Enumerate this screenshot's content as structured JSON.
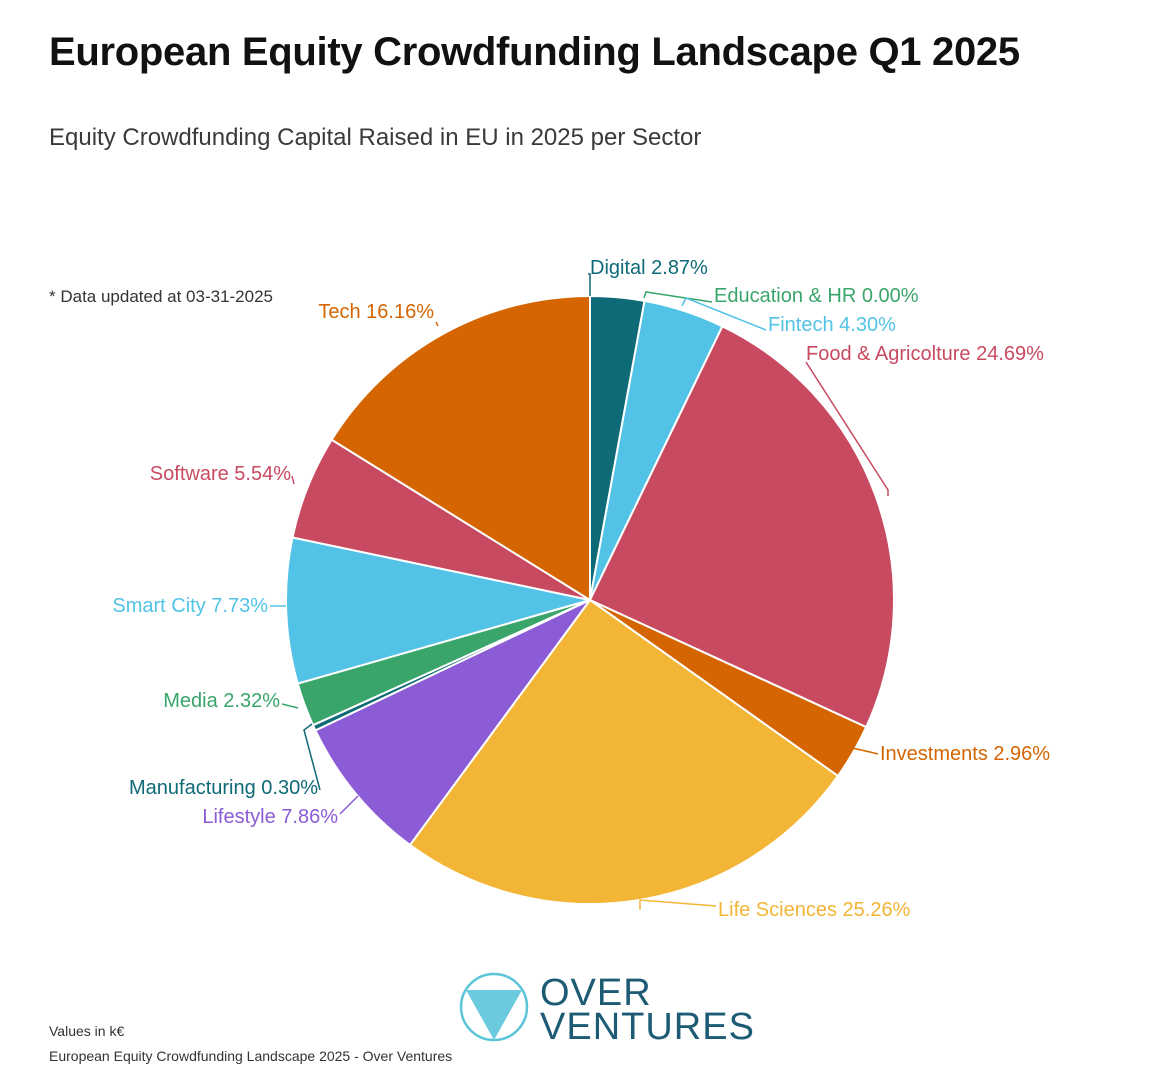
{
  "header": {
    "title": "European Equity Crowdfunding Landscape Q1 2025",
    "subtitle": "Equity Crowdfunding Capital Raised in EU in 2025 per Sector"
  },
  "note": "* Data updated at 03-31-2025",
  "chart_data": {
    "type": "pie",
    "title": "Equity Crowdfunding Capital Raised in EU in 2025 per Sector",
    "unit": "%",
    "slices": [
      {
        "name": "Digital",
        "value": 2.87,
        "label": "Digital 2.87%",
        "color": "#0f6a78"
      },
      {
        "name": "Education & HR",
        "value": 0.0,
        "label": "Education & HR 0.00%",
        "color": "#3aa56b"
      },
      {
        "name": "Fintech",
        "value": 4.3,
        "label": "Fintech 4.30%",
        "color": "#52c3e6"
      },
      {
        "name": "Food & Agricolture",
        "value": 24.69,
        "label": "Food & Agricolture 24.69%",
        "color": "#c84a60"
      },
      {
        "name": "Investments",
        "value": 2.96,
        "label": "Investments 2.96%",
        "color": "#d46500"
      },
      {
        "name": "Life Sciences",
        "value": 25.26,
        "label": "Life Sciences 25.26%",
        "color": "#f2b535"
      },
      {
        "name": "Lifestyle",
        "value": 7.86,
        "label": "Lifestyle 7.86%",
        "color": "#8b5cd6"
      },
      {
        "name": "Manufacturing",
        "value": 0.3,
        "label": "Manufacturing 0.30%",
        "color": "#0f6a78"
      },
      {
        "name": "Media",
        "value": 2.32,
        "label": "Media 2.32%",
        "color": "#3aa56b"
      },
      {
        "name": "Smart City",
        "value": 7.73,
        "label": "Smart City 7.73%",
        "color": "#52c3e6"
      },
      {
        "name": "Software",
        "value": 5.54,
        "label": "Software 5.54%",
        "color": "#c84a60"
      },
      {
        "name": "Tech",
        "value": 16.16,
        "label": "Tech 16.16%",
        "color": "#d46500"
      }
    ]
  },
  "logo": {
    "line1": "OVER",
    "line2": "VENTURES",
    "color": "#1d5b74",
    "accent": "#5bc4d9"
  },
  "footer": {
    "units": "Values in k€",
    "source": "European Equity Crowdfunding Landscape 2025 - Over Ventures"
  }
}
